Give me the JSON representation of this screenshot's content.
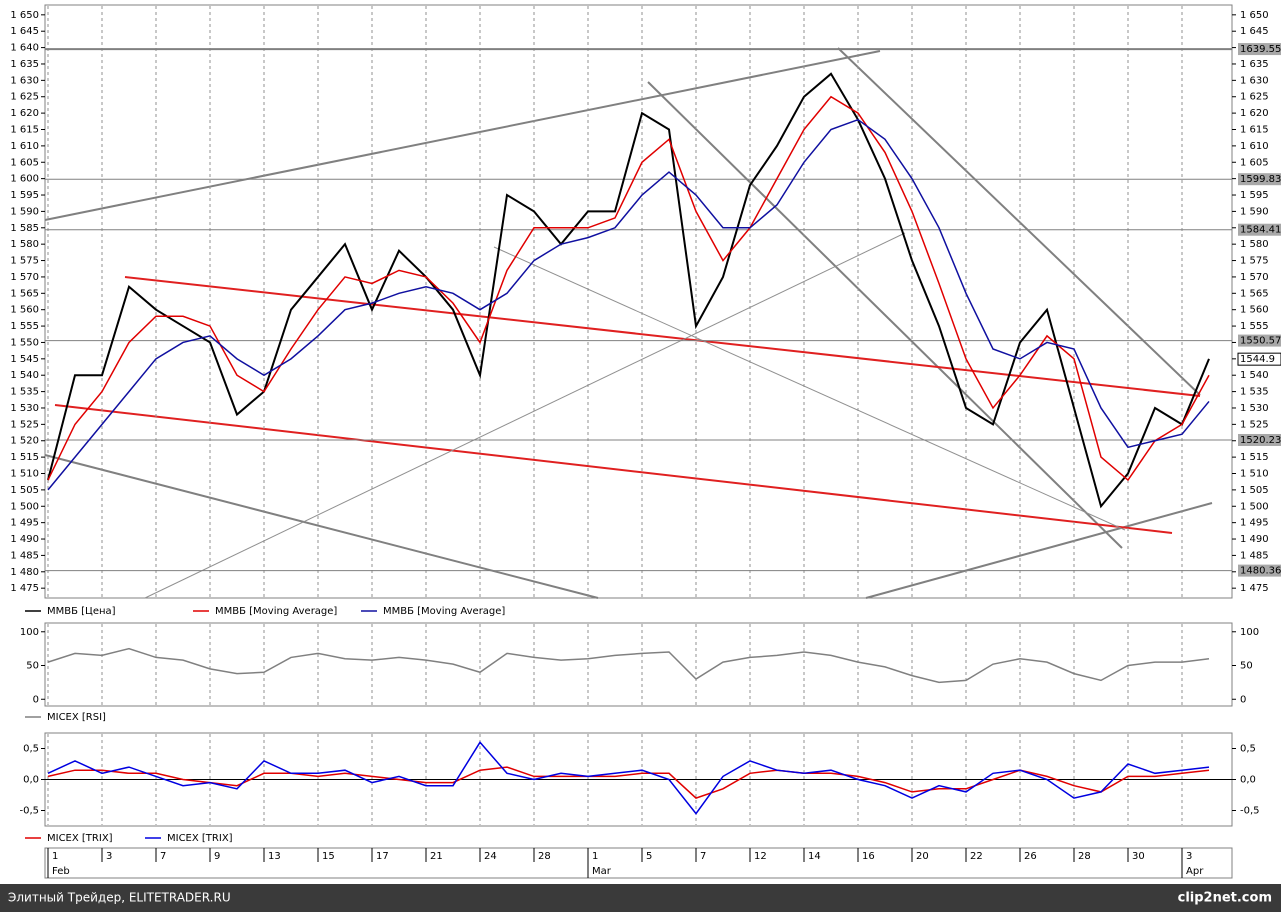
{
  "chart_data": [
    {
      "type": "line",
      "ylim": [
        1472,
        1653
      ],
      "yticks": [
        {
          "value": 1475,
          "label": "1 475"
        },
        {
          "value": 1480,
          "label": "1 480"
        },
        {
          "value": 1485,
          "label": "1 485"
        },
        {
          "value": 1490,
          "label": "1 490"
        },
        {
          "value": 1495,
          "label": "1 495"
        },
        {
          "value": 1500,
          "label": "1 500"
        },
        {
          "value": 1505,
          "label": "1 505"
        },
        {
          "value": 1510,
          "label": "1 510"
        },
        {
          "value": 1515,
          "label": "1 515"
        },
        {
          "value": 1520,
          "label": "1 520"
        },
        {
          "value": 1525,
          "label": "1 525"
        },
        {
          "value": 1530,
          "label": "1 530"
        },
        {
          "value": 1535,
          "label": "1 535"
        },
        {
          "value": 1540,
          "label": "1 540"
        },
        {
          "value": 1545,
          "label": "1 545"
        },
        {
          "value": 1550,
          "label": "1 550"
        },
        {
          "value": 1555,
          "label": "1 555"
        },
        {
          "value": 1560,
          "label": "1 560"
        },
        {
          "value": 1565,
          "label": "1 565"
        },
        {
          "value": 1570,
          "label": "1 570"
        },
        {
          "value": 1575,
          "label": "1 575"
        },
        {
          "value": 1580,
          "label": "1 580"
        },
        {
          "value": 1585,
          "label": "1 585"
        },
        {
          "value": 1590,
          "label": "1 590"
        },
        {
          "value": 1595,
          "label": "1 595"
        },
        {
          "value": 1600,
          "label": "1 600"
        },
        {
          "value": 1605,
          "label": "1 605"
        },
        {
          "value": 1610,
          "label": "1 610"
        },
        {
          "value": 1615,
          "label": "1 615"
        },
        {
          "value": 1620,
          "label": "1 620"
        },
        {
          "value": 1625,
          "label": "1 625"
        },
        {
          "value": 1630,
          "label": "1 630"
        },
        {
          "value": 1635,
          "label": "1 635"
        },
        {
          "value": 1640,
          "label": "1 640"
        },
        {
          "value": 1645,
          "label": "1 645"
        },
        {
          "value": 1650,
          "label": "1 650"
        }
      ],
      "levels": [
        1639.55,
        1599.83,
        1584.41,
        1550.57,
        1520.23,
        1480.36
      ],
      "last_price": 1544.9,
      "series": [
        {
          "name": "ММВБ [Цена]",
          "color": "#000000",
          "values": [
            1508,
            1540,
            1540,
            1567,
            1560,
            1555,
            1550,
            1528,
            1535,
            1560,
            1570,
            1580,
            1560,
            1578,
            1570,
            1560,
            1540,
            1595,
            1590,
            1580,
            1590,
            1590,
            1620,
            1615,
            1555,
            1570,
            1598,
            1610,
            1625,
            1632,
            1618,
            1600,
            1575,
            1555,
            1530,
            1525,
            1550,
            1560,
            1530,
            1500,
            1510,
            1530,
            1525,
            1545
          ]
        },
        {
          "name": "ММВБ [Moving Average]",
          "color": "#e00000",
          "values": [
            1508,
            1525,
            1535,
            1550,
            1558,
            1558,
            1555,
            1540,
            1535,
            1548,
            1560,
            1570,
            1568,
            1572,
            1570,
            1562,
            1550,
            1572,
            1585,
            1585,
            1585,
            1588,
            1605,
            1612,
            1590,
            1575,
            1585,
            1600,
            1615,
            1625,
            1620,
            1608,
            1590,
            1568,
            1545,
            1530,
            1540,
            1552,
            1545,
            1515,
            1508,
            1520,
            1525,
            1540
          ]
        },
        {
          "name": "ММВБ [Moving Average]",
          "color": "#1010a0",
          "values": [
            1505,
            1515,
            1525,
            1535,
            1545,
            1550,
            1552,
            1545,
            1540,
            1545,
            1552,
            1560,
            1562,
            1565,
            1567,
            1565,
            1560,
            1565,
            1575,
            1580,
            1582,
            1585,
            1595,
            1602,
            1595,
            1585,
            1585,
            1592,
            1605,
            1615,
            1618,
            1612,
            1600,
            1585,
            1565,
            1548,
            1545,
            1550,
            1548,
            1530,
            1518,
            1520,
            1522,
            1532
          ]
        }
      ]
    },
    {
      "type": "line",
      "ylim": [
        -10,
        113
      ],
      "yticks": [
        0,
        50,
        100
      ],
      "series": [
        {
          "name": "MICEX [RSI]",
          "color": "#808080",
          "values": [
            55,
            68,
            65,
            75,
            62,
            58,
            45,
            38,
            40,
            62,
            68,
            60,
            58,
            62,
            58,
            52,
            40,
            68,
            62,
            58,
            60,
            65,
            68,
            70,
            30,
            55,
            62,
            65,
            70,
            65,
            55,
            48,
            35,
            25,
            28,
            52,
            60,
            55,
            38,
            28,
            50,
            55,
            55,
            60
          ]
        }
      ]
    },
    {
      "type": "line",
      "ylim": [
        -0.75,
        0.75
      ],
      "yticks": [
        {
          "value": 0.5,
          "label": "0,5"
        },
        {
          "value": 0,
          "label": "0,0"
        },
        {
          "value": -0.5,
          "label": "-0,5"
        }
      ],
      "categories": [
        "1",
        null,
        "3",
        null,
        "7",
        null,
        "9",
        null,
        "13",
        null,
        "15",
        null,
        "17",
        null,
        "21",
        null,
        "24",
        null,
        "28",
        null,
        "1",
        null,
        "5",
        null,
        "7",
        null,
        "12",
        null,
        "14",
        null,
        "16",
        null,
        "20",
        null,
        "22",
        null,
        "26",
        null,
        "28",
        null,
        "30",
        null,
        "3",
        null
      ],
      "months": [
        "Feb",
        null,
        null,
        null,
        null,
        null,
        null,
        null,
        null,
        null,
        null,
        null,
        null,
        null,
        null,
        null,
        null,
        null,
        null,
        null,
        "Mar",
        null,
        null,
        null,
        null,
        null,
        null,
        null,
        null,
        null,
        null,
        null,
        null,
        null,
        null,
        null,
        null,
        null,
        null,
        null,
        null,
        null,
        "Apr",
        null
      ],
      "series": [
        {
          "name": "MICEX [TRIX]",
          "color": "#e00000",
          "values": [
            0.05,
            0.15,
            0.15,
            0.1,
            0.1,
            0.0,
            -0.05,
            -0.1,
            0.1,
            0.1,
            0.05,
            0.1,
            0.05,
            0.0,
            -0.05,
            -0.05,
            0.15,
            0.2,
            0.05,
            0.05,
            0.05,
            0.05,
            0.1,
            0.1,
            -0.3,
            -0.15,
            0.1,
            0.15,
            0.1,
            0.1,
            0.05,
            -0.05,
            -0.2,
            -0.15,
            -0.15,
            0.0,
            0.15,
            0.05,
            -0.1,
            -0.2,
            0.05,
            0.05,
            0.1,
            0.15
          ]
        },
        {
          "name": "MICEX [TRIX]",
          "color": "#0000e0",
          "values": [
            0.1,
            0.3,
            0.1,
            0.2,
            0.05,
            -0.1,
            -0.05,
            -0.15,
            0.3,
            0.1,
            0.1,
            0.15,
            -0.05,
            0.05,
            -0.1,
            -0.1,
            0.6,
            0.1,
            0.0,
            0.1,
            0.05,
            0.1,
            0.15,
            0.0,
            -0.55,
            0.05,
            0.3,
            0.15,
            0.1,
            0.15,
            0.0,
            -0.1,
            -0.3,
            -0.1,
            -0.2,
            0.1,
            0.15,
            0.0,
            -0.3,
            -0.2,
            0.25,
            0.1,
            0.15,
            0.2
          ]
        }
      ]
    }
  ],
  "footer": {
    "left": "Элитный Трейдер, ELITETRADER.RU",
    "right": "clip2net.com"
  }
}
